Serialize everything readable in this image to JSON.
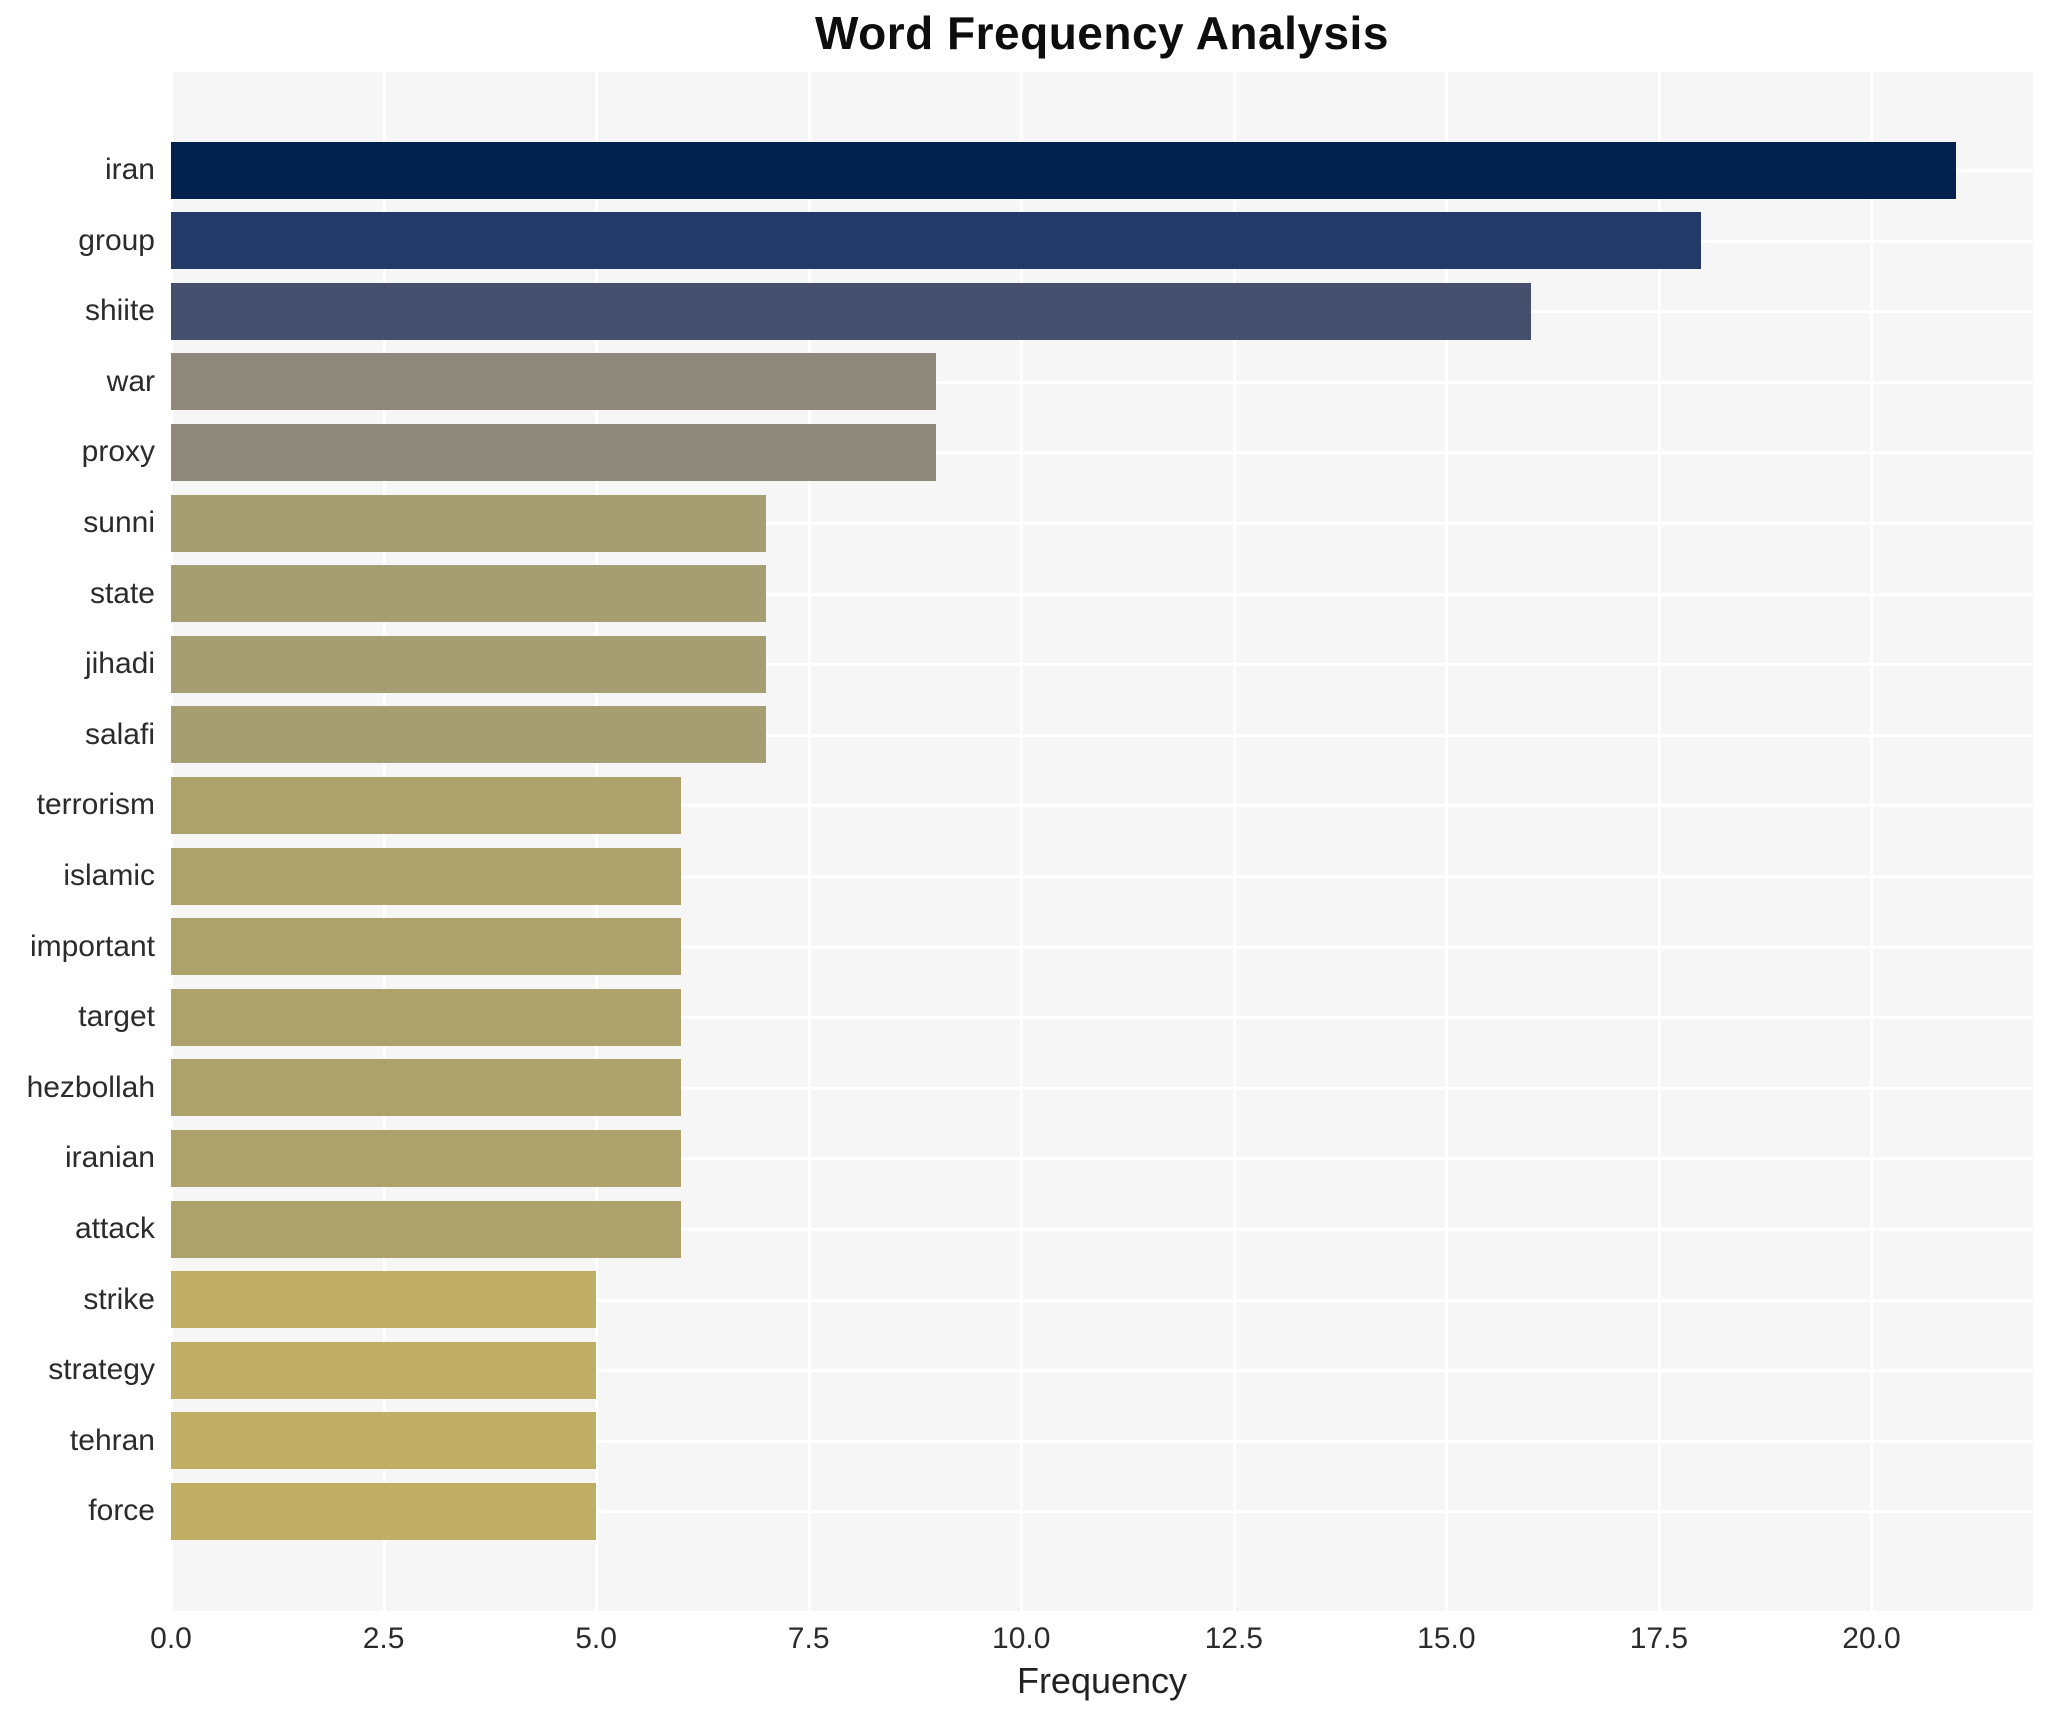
{
  "title": "Word Frequency Analysis",
  "xlabel": "Frequency",
  "chart_data": {
    "type": "bar",
    "orientation": "horizontal",
    "title": "Word Frequency Analysis",
    "xlabel": "Frequency",
    "ylabel": "",
    "categories": [
      "iran",
      "group",
      "shiite",
      "war",
      "proxy",
      "sunni",
      "state",
      "jihadi",
      "salafi",
      "terrorism",
      "islamic",
      "important",
      "target",
      "hezbollah",
      "iranian",
      "attack",
      "strike",
      "strategy",
      "tehran",
      "force"
    ],
    "values": [
      21,
      18,
      16,
      9,
      9,
      7,
      7,
      7,
      7,
      6,
      6,
      6,
      6,
      6,
      6,
      6,
      5,
      5,
      5,
      5
    ],
    "bar_colors": [
      "#03214f",
      "#233a68",
      "#44506e",
      "#8f897c",
      "#8f897c",
      "#a69e73",
      "#a69e73",
      "#a69e73",
      "#a69e73",
      "#ada26c",
      "#ada26c",
      "#ada26c",
      "#ada26c",
      "#ada26c",
      "#ada26c",
      "#ada26c",
      "#bfae63",
      "#bfae63",
      "#bfae63",
      "#bfae63"
    ],
    "xlim": [
      0,
      21.9
    ],
    "xticks": [
      0.0,
      2.5,
      5.0,
      7.5,
      10.0,
      12.5,
      15.0,
      17.5,
      20.0
    ],
    "xtick_labels": [
      "0.0",
      "2.5",
      "5.0",
      "7.5",
      "10.0",
      "12.5",
      "15.0",
      "17.5",
      "20.0"
    ],
    "grid": true,
    "legend": "none",
    "plot_bg_color": "#f6f6f7",
    "grid_color": "#ffffff"
  }
}
